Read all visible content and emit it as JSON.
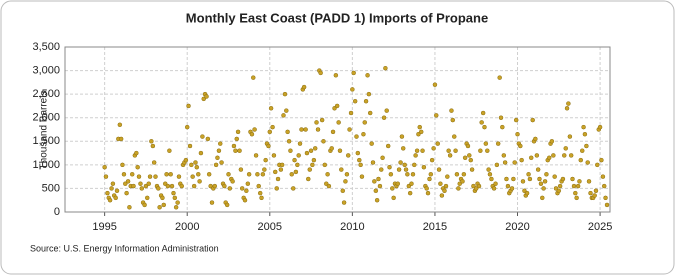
{
  "chart_data": {
    "type": "scatter",
    "title": "Monthly East Coast (PADD 1) Imports of Propane",
    "y_label": "Thousand Barrels",
    "source": "Source: U.S. Energy Information Administration",
    "color": "#c9a227",
    "grid": true,
    "xlim": [
      1992.6,
      2025.6
    ],
    "xticks": [
      1995,
      2000,
      2005,
      2010,
      2015,
      2020,
      2025
    ],
    "ylim": [
      0,
      3500
    ],
    "yticks": [
      0,
      500,
      {
        "value": 1000,
        "label": "1,000"
      },
      {
        "value": 1500,
        "label": "1,500"
      },
      {
        "value": 2000,
        "label": "2,000"
      },
      {
        "value": 2500,
        "label": "2,500"
      },
      {
        "value": 3000,
        "label": "3,000"
      },
      {
        "value": 3500,
        "label": "3,500"
      }
    ],
    "x": [
      1995,
      1995.08,
      1995.17,
      1995.25,
      1995.33,
      1995.42,
      1995.5,
      1995.58,
      1995.67,
      1995.75,
      1995.83,
      1995.92,
      1996,
      1996.08,
      1996.17,
      1996.25,
      1996.33,
      1996.42,
      1996.5,
      1996.58,
      1996.67,
      1996.75,
      1996.83,
      1996.92,
      1997,
      1997.08,
      1997.17,
      1997.25,
      1997.33,
      1997.42,
      1997.5,
      1997.58,
      1997.67,
      1997.75,
      1997.83,
      1997.92,
      1998,
      1998.08,
      1998.17,
      1998.25,
      1998.33,
      1998.42,
      1998.5,
      1998.58,
      1998.67,
      1998.75,
      1998.83,
      1998.92,
      1999,
      1999.08,
      1999.17,
      1999.25,
      1999.33,
      1999.42,
      1999.5,
      1999.58,
      1999.67,
      1999.75,
      1999.83,
      1999.92,
      2000,
      2000.08,
      2000.17,
      2000.25,
      2000.33,
      2000.42,
      2000.5,
      2000.58,
      2000.67,
      2000.75,
      2000.83,
      2000.92,
      2001,
      2001.08,
      2001.17,
      2001.25,
      2001.33,
      2001.42,
      2001.5,
      2001.58,
      2001.67,
      2001.75,
      2001.83,
      2001.92,
      2002,
      2002.08,
      2002.17,
      2002.25,
      2002.33,
      2002.42,
      2002.5,
      2002.58,
      2002.67,
      2002.75,
      2002.83,
      2002.92,
      2003,
      2003.08,
      2003.17,
      2003.25,
      2003.33,
      2003.42,
      2003.5,
      2003.58,
      2003.67,
      2003.75,
      2003.83,
      2003.92,
      2004,
      2004.08,
      2004.17,
      2004.25,
      2004.33,
      2004.42,
      2004.5,
      2004.58,
      2004.67,
      2004.75,
      2004.83,
      2004.92,
      2005,
      2005.08,
      2005.17,
      2005.25,
      2005.33,
      2005.42,
      2005.5,
      2005.58,
      2005.67,
      2005.75,
      2005.83,
      2005.92,
      2006,
      2006.08,
      2006.17,
      2006.25,
      2006.33,
      2006.42,
      2006.5,
      2006.58,
      2006.67,
      2006.75,
      2006.83,
      2006.92,
      2007,
      2007.08,
      2007.17,
      2007.25,
      2007.33,
      2007.42,
      2007.5,
      2007.58,
      2007.67,
      2007.75,
      2007.83,
      2007.92,
      2008,
      2008.08,
      2008.17,
      2008.25,
      2008.33,
      2008.42,
      2008.5,
      2008.58,
      2008.67,
      2008.75,
      2008.83,
      2008.92,
      2009,
      2009.08,
      2009.17,
      2009.25,
      2009.33,
      2009.42,
      2009.5,
      2009.58,
      2009.67,
      2009.75,
      2009.83,
      2009.92,
      2010,
      2010.08,
      2010.17,
      2010.25,
      2010.33,
      2010.42,
      2010.5,
      2010.58,
      2010.67,
      2010.75,
      2010.83,
      2010.92,
      2011,
      2011.08,
      2011.17,
      2011.25,
      2011.33,
      2011.42,
      2011.5,
      2011.58,
      2011.67,
      2011.75,
      2011.83,
      2011.92,
      2012,
      2012.08,
      2012.17,
      2012.25,
      2012.33,
      2012.42,
      2012.5,
      2012.58,
      2012.67,
      2012.75,
      2012.83,
      2012.92,
      2013,
      2013.08,
      2013.17,
      2013.25,
      2013.33,
      2013.42,
      2013.5,
      2013.58,
      2013.67,
      2013.75,
      2013.83,
      2013.92,
      2014,
      2014.08,
      2014.17,
      2014.25,
      2014.33,
      2014.42,
      2014.5,
      2014.58,
      2014.67,
      2014.75,
      2014.83,
      2014.92,
      2015,
      2015.08,
      2015.17,
      2015.25,
      2015.33,
      2015.42,
      2015.5,
      2015.58,
      2015.67,
      2015.75,
      2015.83,
      2015.92,
      2016,
      2016.08,
      2016.17,
      2016.25,
      2016.33,
      2016.42,
      2016.5,
      2016.58,
      2016.67,
      2016.75,
      2016.83,
      2016.92,
      2017,
      2017.08,
      2017.17,
      2017.25,
      2017.33,
      2017.42,
      2017.5,
      2017.58,
      2017.67,
      2017.75,
      2017.83,
      2017.92,
      2018,
      2018.08,
      2018.17,
      2018.25,
      2018.33,
      2018.42,
      2018.5,
      2018.58,
      2018.67,
      2018.75,
      2018.83,
      2018.92,
      2019,
      2019.08,
      2019.17,
      2019.25,
      2019.33,
      2019.42,
      2019.5,
      2019.58,
      2019.67,
      2019.75,
      2019.83,
      2019.92,
      2020,
      2020.08,
      2020.17,
      2020.25,
      2020.33,
      2020.42,
      2020.5,
      2020.58,
      2020.67,
      2020.75,
      2020.83,
      2020.92,
      2021,
      2021.08,
      2021.17,
      2021.25,
      2021.33,
      2021.42,
      2021.5,
      2021.58,
      2021.67,
      2021.75,
      2021.83,
      2021.92,
      2022,
      2022.08,
      2022.17,
      2022.25,
      2022.33,
      2022.42,
      2022.5,
      2022.58,
      2022.67,
      2022.75,
      2022.83,
      2022.92,
      2023,
      2023.08,
      2023.17,
      2023.25,
      2023.33,
      2023.42,
      2023.5,
      2023.58,
      2023.67,
      2023.75,
      2023.83,
      2023.92,
      2024,
      2024.08,
      2024.17,
      2024.25,
      2024.33,
      2024.42,
      2024.5,
      2024.58,
      2024.67,
      2024.75,
      2024.83,
      2024.92,
      2025,
      2025.08,
      2025.17,
      2025.25,
      2025.33,
      2025.42
    ],
    "values": [
      950,
      750,
      400,
      300,
      250,
      500,
      600,
      350,
      300,
      450,
      1550,
      1850,
      1550,
      1000,
      800,
      600,
      400,
      650,
      100,
      550,
      800,
      550,
      1200,
      1250,
      950,
      750,
      600,
      500,
      200,
      150,
      550,
      300,
      600,
      750,
      1500,
      1400,
      1050,
      750,
      550,
      500,
      100,
      350,
      300,
      150,
      600,
      800,
      550,
      1300,
      800,
      550,
      400,
      300,
      100,
      200,
      750,
      600,
      550,
      1000,
      1050,
      1100,
      1800,
      2250,
      1400,
      1000,
      750,
      550,
      1050,
      950,
      800,
      650,
      1250,
      1600,
      2400,
      2500,
      2450,
      1550,
      800,
      550,
      200,
      500,
      550,
      1000,
      1150,
      1300,
      1450,
      1050,
      600,
      550,
      200,
      150,
      800,
      500,
      700,
      650,
      1400,
      1300,
      1550,
      1700,
      1300,
      900,
      500,
      300,
      250,
      450,
      600,
      800,
      1700,
      1650,
      2850,
      1750,
      1200,
      800,
      550,
      400,
      300,
      800,
      900,
      1100,
      1450,
      1400,
      1700,
      2200,
      1800,
      1200,
      850,
      500,
      700,
      1000,
      900,
      1000,
      2050,
      2500,
      2150,
      1700,
      1500,
      1300,
      800,
      500,
      1100,
      850,
      1000,
      1200,
      1450,
      1750,
      2600,
      2650,
      1750,
      1250,
      700,
      900,
      1300,
      1000,
      1100,
      1350,
      1900,
      1750,
      3000,
      2950,
      1950,
      1500,
      1000,
      600,
      800,
      550,
      1300,
      1350,
      1700,
      2200,
      2900,
      2250,
      1900,
      1300,
      900,
      450,
      200,
      650,
      800,
      1200,
      1750,
      2100,
      2600,
      2950,
      2350,
      1600,
      1250,
      1100,
      1000,
      750,
      1650,
      1900,
      2350,
      2900,
      2500,
      2100,
      1450,
      1050,
      650,
      450,
      250,
      700,
      550,
      900,
      1150,
      2000,
      3050,
      2150,
      1400,
      950,
      800,
      500,
      300,
      600,
      550,
      600,
      900,
      1050,
      1600,
      1350,
      1000,
      900,
      800,
      550,
      400,
      600,
      800,
      1000,
      1200,
      1300,
      1650,
      1800,
      1700,
      1300,
      950,
      550,
      500,
      400,
      700,
      800,
      1100,
      1350,
      2700,
      2050,
      1450,
      900,
      600,
      350,
      500,
      450,
      550,
      750,
      1300,
      1200,
      2150,
      1950,
      1600,
      1300,
      800,
      500,
      600,
      700,
      650,
      800,
      1150,
      1450,
      1400,
      1200,
      1100,
      900,
      550,
      450,
      500,
      600,
      550,
      1300,
      1900,
      2100,
      1800,
      1450,
      1300,
      900,
      800,
      700,
      550,
      500,
      600,
      1000,
      1450,
      2850,
      2000,
      1800,
      1200,
      1050,
      700,
      550,
      400,
      450,
      500,
      700,
      1050,
      1950,
      1650,
      1450,
      1400,
      1100,
      650,
      450,
      350,
      400,
      800,
      700,
      1150,
      1950,
      1500,
      1550,
      1200,
      900,
      700,
      600,
      300,
      500,
      650,
      800,
      1100,
      1150,
      1450,
      1500,
      1200,
      750,
      500,
      400,
      450,
      550,
      650,
      700,
      1200,
      1350,
      2200,
      2300,
      1600,
      1200,
      700,
      550,
      400,
      300,
      550,
      650,
      1100,
      1300,
      1800,
      1650,
      1400,
      1050,
      650,
      400,
      300,
      300,
      350,
      450,
      1000,
      1750,
      1800,
      1100,
      750,
      550,
      300,
      150
    ]
  }
}
